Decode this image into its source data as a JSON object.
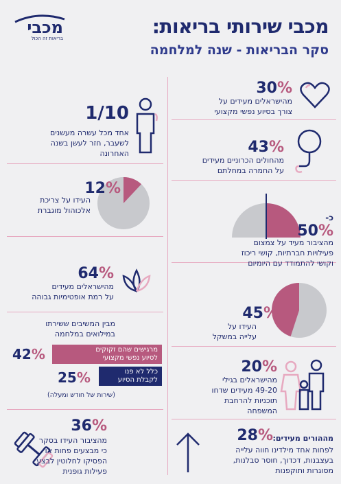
{
  "header": {
    "title": "מכבי שירותי בריאות:",
    "subtitle": "סקר הבריאות - שנה למלחמה",
    "logo_name": "מכבי",
    "logo_tagline": "בריאות זה הכול"
  },
  "colors": {
    "navy": "#1f2a6e",
    "pink": "#b7597e",
    "light_pink": "#e7a9c0",
    "gray": "#c8c9cd",
    "background": "#f0f0f2"
  },
  "stats": {
    "mental_support": {
      "value": "30",
      "symbol": "%",
      "line1": "מהישראלים מעידים על",
      "line2": "צורך בסיוע נפשי מקצועי",
      "icon": "heart-icon"
    },
    "smoking": {
      "value": "1/10",
      "line1": "אחד מכל עשרה מעשנים",
      "line2": "לשעבר, חזר לעשן בשנה",
      "line3": "האחרונה",
      "icon": "person-icon"
    },
    "chronic": {
      "value": "43",
      "symbol": "%",
      "line1": "מהחולים הכרוניים מעידים",
      "line2": "על החמרה במחלתם",
      "icon": "stethoscope-icon"
    },
    "alcohol": {
      "value": "12",
      "symbol": "%",
      "line1": "העידו על צריכת",
      "line2": "אלכוהול מוגברת",
      "fraction": 0.12
    },
    "activities": {
      "prefix": "כ-",
      "value": "50",
      "symbol": "%",
      "line1": "מהציבור מעיד על צמצום",
      "line2": "פעילויות חברתיות, קושי ריכוז",
      "line3": "וקושי להתמודד עם היומיום",
      "fraction": 0.5
    },
    "optimism": {
      "value": "64",
      "symbol": "%",
      "line1": "מהישראלים מעידים",
      "line2": "על רמת אופטימיות גבוהה",
      "icon": "lotus-icon"
    },
    "weight": {
      "value": "45",
      "symbol": "%",
      "line1": "העידו על",
      "line2": "עלייה במשקל",
      "fraction": 0.45
    },
    "reservists": {
      "heading1": "מבין המשיבים ששירתו",
      "heading2": "במילואים במלחמה",
      "bar1_value": "42",
      "bar1_symbol": "%",
      "bar1_line1": "מרגישים שהם זקוקים",
      "bar1_line2": "לסיוע נפשי מקצועי",
      "bar1_fraction": 0.42,
      "bar2_value": "25",
      "bar2_symbol": "%",
      "bar2_line1": "כלל לא פנו",
      "bar2_line2": "לקבלת הסיוע",
      "bar2_fraction": 0.25,
      "note": "(שירות של חודש ומעלה)"
    },
    "family": {
      "value": "20",
      "symbol": "%",
      "line1": "מהישראלים בגילי",
      "line2": "49-20 מעידים שדחו",
      "line3": "תוכניות להרחבת",
      "line4": "המשפחה",
      "icon": "family-icon"
    },
    "exercise": {
      "value": "36",
      "symbol": "%",
      "line1": "מהציבור העידו בסקר",
      "line2": "כי מבצעים פחות או",
      "line3": "הפסיקו לחלוטין לבצע",
      "line4": "פעילות גופנית",
      "icon": "dumbbell-icon"
    },
    "parents": {
      "value": "28",
      "symbol": "%",
      "heading": "מההורים מעידים:",
      "line1": "לפחות אחד מילדינו חווה עלייה",
      "line2": "בעצבנות, דכדוך, חוסר סבלנות,",
      "line3": "מסוגרות ותוקפנות",
      "icon": "arrow-up-icon"
    }
  }
}
